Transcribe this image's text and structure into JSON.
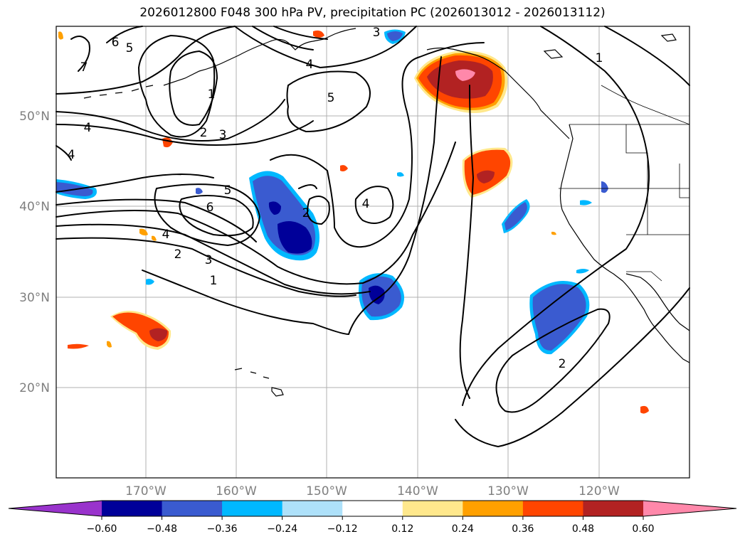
{
  "title": "2026012800 F048 300 hPa PV, precipitation PC (2026013012 - 2026013112)",
  "axes": {
    "lon_labels": [
      "170°W",
      "160°W",
      "150°W",
      "140°W",
      "130°W",
      "120°W"
    ],
    "lat_labels": [
      "50°N",
      "40°N",
      "30°N",
      "20°N"
    ]
  },
  "contour_labels": [
    "1",
    "2",
    "3",
    "4",
    "5",
    "6",
    "7",
    "1",
    "2",
    "3",
    "4",
    "4",
    "5",
    "5",
    "6",
    "2",
    "4",
    "1",
    "3",
    "4",
    "2"
  ],
  "colorbar": {
    "ticks": [
      "−0.60",
      "−0.48",
      "−0.36",
      "−0.24",
      "−0.12",
      "0.12",
      "0.24",
      "0.36",
      "0.48",
      "0.60"
    ],
    "colors": [
      "#9933cc",
      "#000099",
      "#3a5bd0",
      "#00b8ff",
      "#aee1fa",
      "#ffffff",
      "#ffe88c",
      "#ffa000",
      "#ff4500",
      "#b22222",
      "#ff88aa"
    ]
  }
}
